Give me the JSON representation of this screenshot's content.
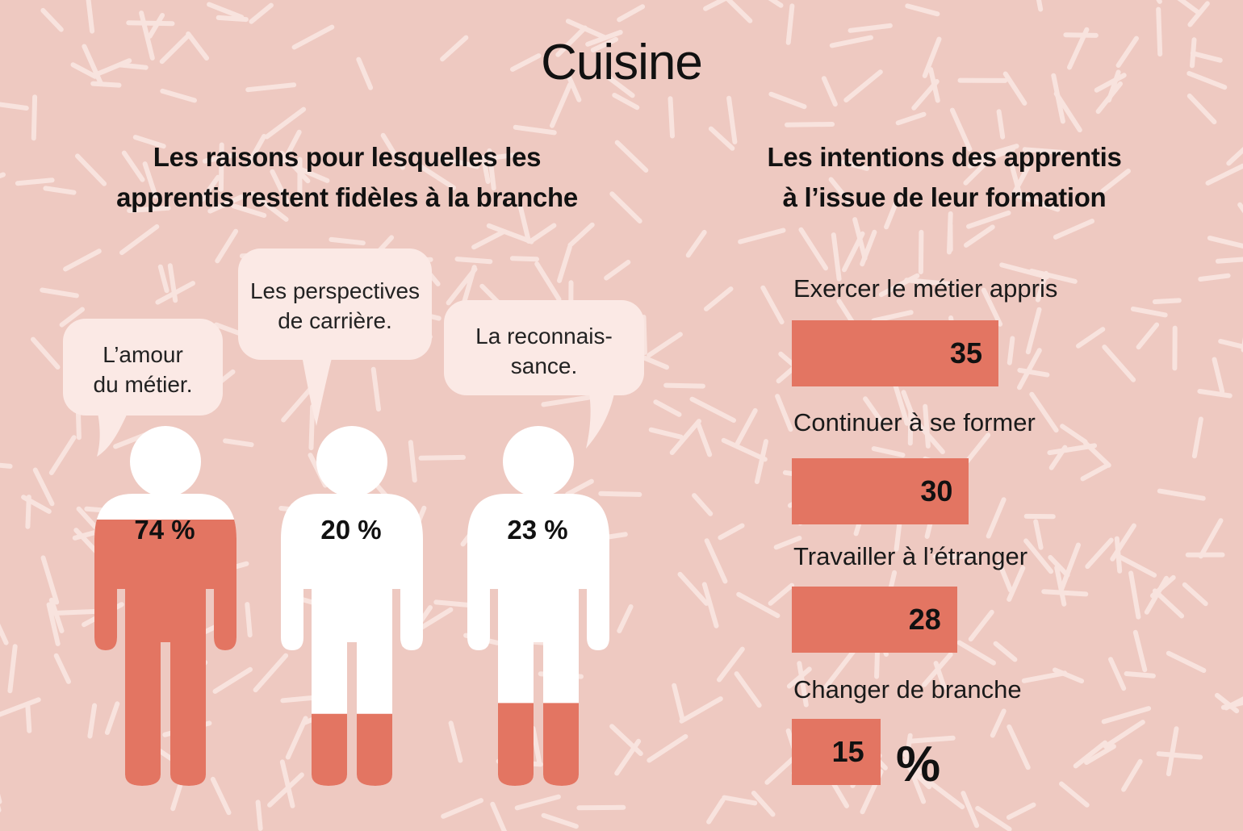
{
  "title": "Cuisine",
  "left_subtitle_line1": "Les raisons pour lesquelles les",
  "left_subtitle_line2": "apprentis restent fidèles à la branche",
  "right_subtitle_line1": "Les intentions des apprentis",
  "right_subtitle_line2": "à l’issue de leur formation",
  "unit_symbol": "%",
  "colors": {
    "background": "#eec9c1",
    "accent": "#e37562",
    "figure": "#ffffff",
    "bubble": "#fbe9e5",
    "pattern": "#f8e3de"
  },
  "chart_data": [
    {
      "type": "bar",
      "orientation": "pictogram",
      "title": "Les raisons pour lesquelles les apprentis restent fidèles à la branche",
      "unit": "%",
      "categories": [
        "L’amour du métier.",
        "Les perspectives de carrière.",
        "La reconnaissance."
      ],
      "bubble_lines": [
        [
          "L’amour",
          "du métier."
        ],
        [
          "Les perspectives",
          "de carrière."
        ],
        [
          "La reconnais-",
          "sance."
        ]
      ],
      "values": [
        74,
        20,
        23
      ],
      "labels": [
        "74 %",
        "20 %",
        "23 %"
      ],
      "ylim": [
        0,
        100
      ]
    },
    {
      "type": "bar",
      "orientation": "horizontal",
      "title": "Les intentions des apprentis à l’issue de leur formation",
      "unit": "%",
      "categories": [
        "Exercer le métier appris",
        "Continuer à se former",
        "Travailler à l’étranger",
        "Changer de branche"
      ],
      "values": [
        35,
        30,
        28,
        15
      ],
      "xlim": [
        0,
        35
      ]
    }
  ]
}
